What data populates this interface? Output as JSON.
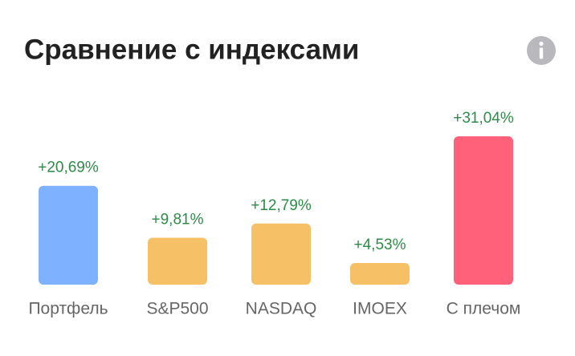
{
  "chart_data": {
    "type": "bar",
    "title": "Сравнение с индексами",
    "categories": [
      "Портфель",
      "S&P500",
      "NASDAQ",
      "IMOEX",
      "С плечом"
    ],
    "values": [
      20.69,
      9.81,
      12.79,
      4.53,
      31.04
    ],
    "value_labels": [
      "+20,69%",
      "+9,81%",
      "+12,79%",
      "+4,53%",
      "+31,04%"
    ],
    "colors": [
      "#7eb1ff",
      "#f5c066",
      "#f5c066",
      "#f5c066",
      "#ff617b"
    ]
  }
}
